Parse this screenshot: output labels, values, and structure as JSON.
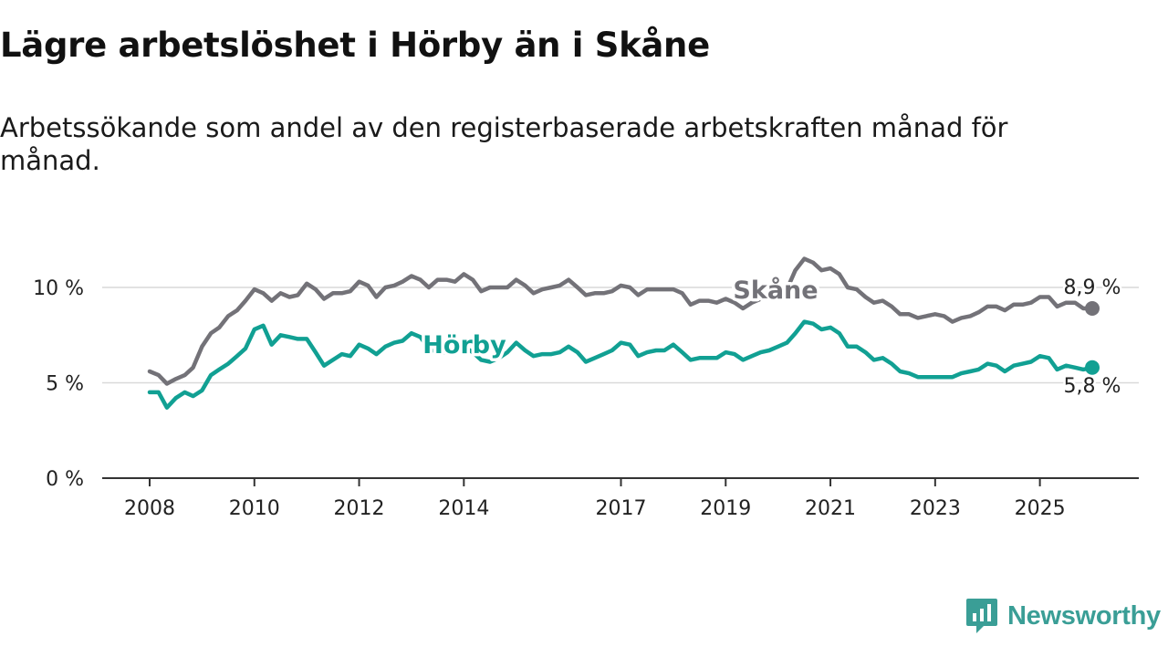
{
  "header": {
    "title": "Lägre arbetslöshet i Hörby än i Skåne",
    "subtitle": "Arbetssökande som andel av den registerbaserade arbetskraften månad för månad."
  },
  "brand": {
    "name": "Newsworthy",
    "color": "#3a9e96",
    "icon": "newsworthy-logo-icon"
  },
  "colors": {
    "skane": "#737278",
    "horby": "#11a093",
    "grid": "#d9d9d9",
    "axis": "#333333"
  },
  "chart_data": {
    "type": "line",
    "title": "Lägre arbetslöshet i Hörby än i Skåne",
    "subtitle": "Arbetssökande som andel av den registerbaserade arbetskraften månad för månad.",
    "xlabel": "",
    "ylabel": "",
    "xlim": [
      2008.0,
      2027.2
    ],
    "ylim": [
      0,
      12
    ],
    "grid": true,
    "y_ticks": [
      {
        "value": 0,
        "label": "0 %"
      },
      {
        "value": 5,
        "label": "5 %"
      },
      {
        "value": 10,
        "label": "10 %"
      }
    ],
    "x_ticks": [
      {
        "value": 2008,
        "label": "2008"
      },
      {
        "value": 2010,
        "label": "2010"
      },
      {
        "value": 2012,
        "label": "2012"
      },
      {
        "value": 2014,
        "label": "2014"
      },
      {
        "value": 2017,
        "label": "2017"
      },
      {
        "value": 2019,
        "label": "2019"
      },
      {
        "value": 2021,
        "label": "2021"
      },
      {
        "value": 2023,
        "label": "2023"
      },
      {
        "value": 2025,
        "label": "2025"
      }
    ],
    "series": [
      {
        "name": "Skåne",
        "label": "Skåne",
        "end_label": "8,9 %",
        "points": [
          [
            2008.0,
            5.6
          ],
          [
            2008.17,
            5.4
          ],
          [
            2008.33,
            4.95
          ],
          [
            2008.5,
            5.2
          ],
          [
            2008.67,
            5.4
          ],
          [
            2008.83,
            5.8
          ],
          [
            2009.0,
            6.9
          ],
          [
            2009.17,
            7.6
          ],
          [
            2009.33,
            7.9
          ],
          [
            2009.5,
            8.5
          ],
          [
            2009.67,
            8.8
          ],
          [
            2009.83,
            9.3
          ],
          [
            2010.0,
            9.9
          ],
          [
            2010.17,
            9.7
          ],
          [
            2010.33,
            9.3
          ],
          [
            2010.5,
            9.7
          ],
          [
            2010.67,
            9.5
          ],
          [
            2010.83,
            9.6
          ],
          [
            2011.0,
            10.2
          ],
          [
            2011.17,
            9.9
          ],
          [
            2011.33,
            9.4
          ],
          [
            2011.5,
            9.7
          ],
          [
            2011.67,
            9.7
          ],
          [
            2011.83,
            9.8
          ],
          [
            2012.0,
            10.3
          ],
          [
            2012.17,
            10.1
          ],
          [
            2012.33,
            9.5
          ],
          [
            2012.5,
            10.0
          ],
          [
            2012.67,
            10.1
          ],
          [
            2012.83,
            10.3
          ],
          [
            2013.0,
            10.6
          ],
          [
            2013.17,
            10.4
          ],
          [
            2013.33,
            10.0
          ],
          [
            2013.5,
            10.4
          ],
          [
            2013.67,
            10.4
          ],
          [
            2013.83,
            10.3
          ],
          [
            2014.0,
            10.7
          ],
          [
            2014.17,
            10.4
          ],
          [
            2014.33,
            9.8
          ],
          [
            2014.5,
            10.0
          ],
          [
            2014.67,
            10.0
          ],
          [
            2014.83,
            10.0
          ],
          [
            2015.0,
            10.4
          ],
          [
            2015.17,
            10.1
          ],
          [
            2015.33,
            9.7
          ],
          [
            2015.5,
            9.9
          ],
          [
            2015.67,
            10.0
          ],
          [
            2015.83,
            10.1
          ],
          [
            2016.0,
            10.4
          ],
          [
            2016.17,
            10.0
          ],
          [
            2016.33,
            9.6
          ],
          [
            2016.5,
            9.7
          ],
          [
            2016.67,
            9.7
          ],
          [
            2016.83,
            9.8
          ],
          [
            2017.0,
            10.1
          ],
          [
            2017.17,
            10.0
          ],
          [
            2017.33,
            9.6
          ],
          [
            2017.5,
            9.9
          ],
          [
            2017.67,
            9.9
          ],
          [
            2017.83,
            9.9
          ],
          [
            2018.0,
            9.9
          ],
          [
            2018.17,
            9.7
          ],
          [
            2018.33,
            9.1
          ],
          [
            2018.5,
            9.3
          ],
          [
            2018.67,
            9.3
          ],
          [
            2018.83,
            9.2
          ],
          [
            2019.0,
            9.4
          ],
          [
            2019.17,
            9.2
          ],
          [
            2019.33,
            8.9
          ],
          [
            2019.5,
            9.2
          ],
          [
            2019.67,
            9.4
          ],
          [
            2019.83,
            9.6
          ],
          [
            2020.0,
            9.8
          ],
          [
            2020.17,
            9.9
          ],
          [
            2020.33,
            10.9
          ],
          [
            2020.5,
            11.5
          ],
          [
            2020.67,
            11.3
          ],
          [
            2020.83,
            10.9
          ],
          [
            2021.0,
            11.0
          ],
          [
            2021.17,
            10.7
          ],
          [
            2021.33,
            10.0
          ],
          [
            2021.5,
            9.9
          ],
          [
            2021.67,
            9.5
          ],
          [
            2021.83,
            9.2
          ],
          [
            2022.0,
            9.3
          ],
          [
            2022.17,
            9.0
          ],
          [
            2022.33,
            8.6
          ],
          [
            2022.5,
            8.6
          ],
          [
            2022.67,
            8.4
          ],
          [
            2022.83,
            8.5
          ],
          [
            2023.0,
            8.6
          ],
          [
            2023.17,
            8.5
          ],
          [
            2023.33,
            8.2
          ],
          [
            2023.5,
            8.4
          ],
          [
            2023.67,
            8.5
          ],
          [
            2023.83,
            8.7
          ],
          [
            2024.0,
            9.0
          ],
          [
            2024.17,
            9.0
          ],
          [
            2024.33,
            8.8
          ],
          [
            2024.5,
            9.1
          ],
          [
            2024.67,
            9.1
          ],
          [
            2024.83,
            9.2
          ],
          [
            2025.0,
            9.5
          ],
          [
            2025.17,
            9.5
          ],
          [
            2025.33,
            9.0
          ],
          [
            2025.5,
            9.2
          ],
          [
            2025.67,
            9.2
          ],
          [
            2025.83,
            8.9
          ],
          [
            2026.0,
            8.9
          ]
        ]
      },
      {
        "name": "Hörby",
        "label": "Hörby",
        "end_label": "5,8 %",
        "points": [
          [
            2008.0,
            4.5
          ],
          [
            2008.17,
            4.5
          ],
          [
            2008.33,
            3.7
          ],
          [
            2008.5,
            4.2
          ],
          [
            2008.67,
            4.5
          ],
          [
            2008.83,
            4.3
          ],
          [
            2009.0,
            4.6
          ],
          [
            2009.17,
            5.4
          ],
          [
            2009.33,
            5.7
          ],
          [
            2009.5,
            6.0
          ],
          [
            2009.67,
            6.4
          ],
          [
            2009.83,
            6.8
          ],
          [
            2010.0,
            7.8
          ],
          [
            2010.17,
            8.0
          ],
          [
            2010.33,
            7.0
          ],
          [
            2010.5,
            7.5
          ],
          [
            2010.67,
            7.4
          ],
          [
            2010.83,
            7.3
          ],
          [
            2011.0,
            7.3
          ],
          [
            2011.17,
            6.6
          ],
          [
            2011.33,
            5.9
          ],
          [
            2011.5,
            6.2
          ],
          [
            2011.67,
            6.5
          ],
          [
            2011.83,
            6.4
          ],
          [
            2012.0,
            7.0
          ],
          [
            2012.17,
            6.8
          ],
          [
            2012.33,
            6.5
          ],
          [
            2012.5,
            6.9
          ],
          [
            2012.67,
            7.1
          ],
          [
            2012.83,
            7.2
          ],
          [
            2013.0,
            7.6
          ],
          [
            2013.17,
            7.4
          ],
          [
            2013.33,
            6.8
          ],
          [
            2013.5,
            6.6
          ],
          [
            2013.67,
            6.6
          ],
          [
            2013.83,
            6.5
          ],
          [
            2014.0,
            6.9
          ],
          [
            2014.17,
            6.6
          ],
          [
            2014.33,
            6.2
          ],
          [
            2014.5,
            6.1
          ],
          [
            2014.67,
            6.3
          ],
          [
            2014.83,
            6.6
          ],
          [
            2015.0,
            7.1
          ],
          [
            2015.17,
            6.7
          ],
          [
            2015.33,
            6.4
          ],
          [
            2015.5,
            6.5
          ],
          [
            2015.67,
            6.5
          ],
          [
            2015.83,
            6.6
          ],
          [
            2016.0,
            6.9
          ],
          [
            2016.17,
            6.6
          ],
          [
            2016.33,
            6.1
          ],
          [
            2016.5,
            6.3
          ],
          [
            2016.67,
            6.5
          ],
          [
            2016.83,
            6.7
          ],
          [
            2017.0,
            7.1
          ],
          [
            2017.17,
            7.0
          ],
          [
            2017.33,
            6.4
          ],
          [
            2017.5,
            6.6
          ],
          [
            2017.67,
            6.7
          ],
          [
            2017.83,
            6.7
          ],
          [
            2018.0,
            7.0
          ],
          [
            2018.17,
            6.6
          ],
          [
            2018.33,
            6.2
          ],
          [
            2018.5,
            6.3
          ],
          [
            2018.67,
            6.3
          ],
          [
            2018.83,
            6.3
          ],
          [
            2019.0,
            6.6
          ],
          [
            2019.17,
            6.5
          ],
          [
            2019.33,
            6.2
          ],
          [
            2019.5,
            6.4
          ],
          [
            2019.67,
            6.6
          ],
          [
            2019.83,
            6.7
          ],
          [
            2020.0,
            6.9
          ],
          [
            2020.17,
            7.1
          ],
          [
            2020.33,
            7.6
          ],
          [
            2020.5,
            8.2
          ],
          [
            2020.67,
            8.1
          ],
          [
            2020.83,
            7.8
          ],
          [
            2021.0,
            7.9
          ],
          [
            2021.17,
            7.6
          ],
          [
            2021.33,
            6.9
          ],
          [
            2021.5,
            6.9
          ],
          [
            2021.67,
            6.6
          ],
          [
            2021.83,
            6.2
          ],
          [
            2022.0,
            6.3
          ],
          [
            2022.17,
            6.0
          ],
          [
            2022.33,
            5.6
          ],
          [
            2022.5,
            5.5
          ],
          [
            2022.67,
            5.3
          ],
          [
            2022.83,
            5.3
          ],
          [
            2023.0,
            5.3
          ],
          [
            2023.17,
            5.3
          ],
          [
            2023.33,
            5.3
          ],
          [
            2023.5,
            5.5
          ],
          [
            2023.67,
            5.6
          ],
          [
            2023.83,
            5.7
          ],
          [
            2024.0,
            6.0
          ],
          [
            2024.17,
            5.9
          ],
          [
            2024.33,
            5.6
          ],
          [
            2024.5,
            5.9
          ],
          [
            2024.67,
            6.0
          ],
          [
            2024.83,
            6.1
          ],
          [
            2025.0,
            6.4
          ],
          [
            2025.17,
            6.3
          ],
          [
            2025.33,
            5.7
          ],
          [
            2025.5,
            5.9
          ],
          [
            2025.67,
            5.8
          ],
          [
            2025.83,
            5.7
          ],
          [
            2026.0,
            5.8
          ]
        ]
      }
    ]
  }
}
